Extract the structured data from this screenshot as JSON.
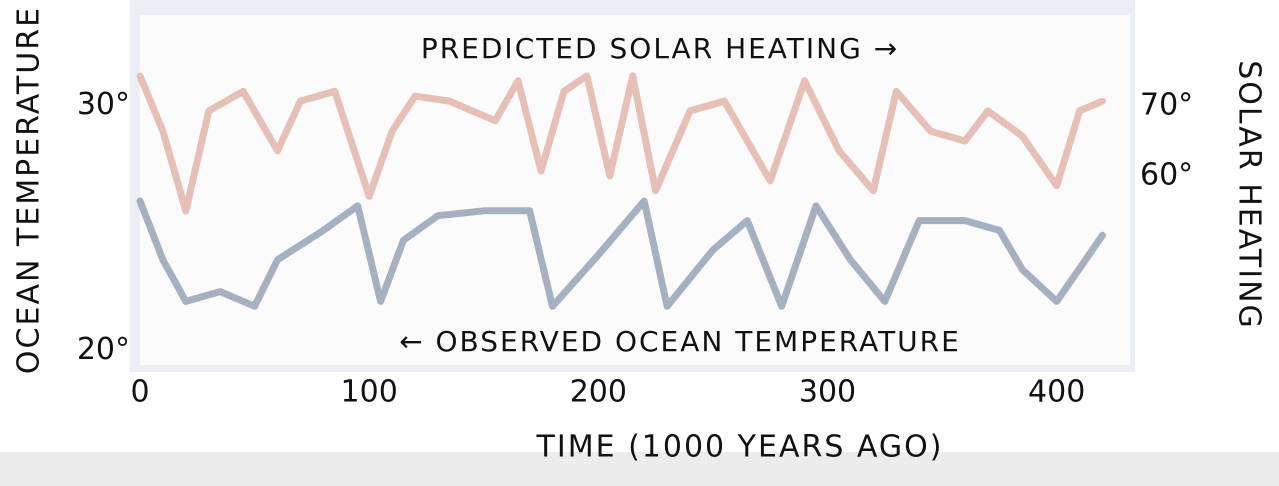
{
  "chart_data": {
    "type": "line",
    "annotations": [
      "PREDICTED SOLAR HEATING →",
      "← OBSERVED OCEAN TEMPERATURE"
    ],
    "xlabel": "TIME (1000 YEARS AGO)",
    "ylabel": "OCEAN TEMPERATURE",
    "y2label": "SOLAR HEATING",
    "xlim": [
      0,
      432
    ],
    "xticks": [
      0,
      100,
      200,
      300,
      400
    ],
    "ylim": [
      19.4,
      33.7
    ],
    "yticks": [
      {
        "value": 20,
        "label": "20°"
      },
      {
        "value": 30,
        "label": "30°"
      }
    ],
    "y2lim": [
      33,
      83
    ],
    "y2ticks": [
      {
        "value": 60,
        "label": "60°"
      },
      {
        "value": 70,
        "label": "70°"
      }
    ],
    "grid": false,
    "series": [
      {
        "color": "#e2b4aa",
        "axis": "y2",
        "x": [
          0,
          10,
          20,
          30,
          45,
          60,
          70,
          85,
          100,
          110,
          120,
          135,
          155,
          165,
          175,
          185,
          195,
          205,
          215,
          225,
          240,
          255,
          275,
          290,
          305,
          320,
          330,
          345,
          360,
          370,
          385,
          400,
          410,
          420
        ],
        "values": [
          74.3,
          66.4,
          55,
          69.3,
          72.1,
          63.6,
          70.7,
          72.1,
          57.1,
          66.4,
          71.4,
          70.7,
          67.9,
          73.6,
          60.7,
          72.1,
          74.3,
          60,
          74.3,
          57.9,
          69.3,
          70.7,
          59.3,
          73.6,
          63.6,
          57.9,
          72.1,
          66.4,
          65,
          69.3,
          65.7,
          58.6,
          69.3,
          70.7
        ]
      },
      {
        "color": "#95a3b6",
        "x": [
          0,
          10,
          20,
          35,
          50,
          60,
          80,
          95,
          105,
          115,
          130,
          150,
          170,
          180,
          200,
          220,
          230,
          250,
          265,
          280,
          295,
          310,
          325,
          340,
          360,
          375,
          385,
          400,
          420
        ],
        "values": [
          26.1,
          23.7,
          22,
          22.4,
          21.8,
          23.7,
          24.9,
          25.9,
          22,
          24.5,
          25.5,
          25.7,
          25.7,
          21.8,
          23.9,
          26.1,
          21.8,
          24.1,
          25.3,
          21.8,
          25.9,
          23.7,
          22,
          25.3,
          25.3,
          24.9,
          23.3,
          22,
          24.7
        ]
      }
    ]
  }
}
